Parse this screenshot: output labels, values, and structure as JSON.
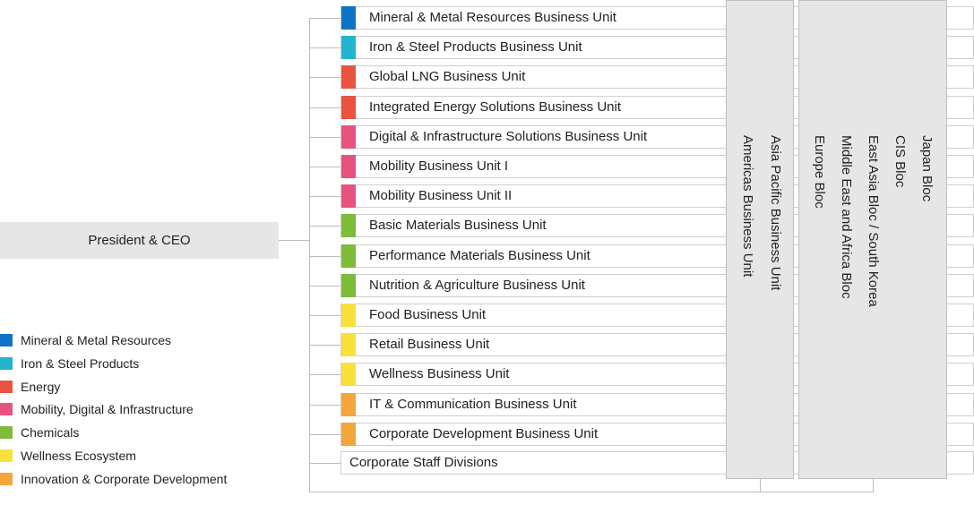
{
  "ceo": {
    "label": "President & CEO"
  },
  "units": [
    {
      "label": "Mineral & Metal Resources Business Unit",
      "color": "#0d74c8"
    },
    {
      "label": "Iron & Steel Products Business Unit",
      "color": "#22b5cd"
    },
    {
      "label": "Global LNG Business Unit",
      "color": "#e9533f"
    },
    {
      "label": "Integrated Energy Solutions Business Unit",
      "color": "#e9533f"
    },
    {
      "label": "Digital & Infrastructure Solutions Business Unit",
      "color": "#e8527f"
    },
    {
      "label": "Mobility Business Unit I",
      "color": "#e8527f"
    },
    {
      "label": "Mobility Business Unit II",
      "color": "#e8527f"
    },
    {
      "label": "Basic Materials Business Unit",
      "color": "#7ebc3a"
    },
    {
      "label": "Performance Materials Business Unit",
      "color": "#7ebc3a"
    },
    {
      "label": "Nutrition & Agriculture Business Unit",
      "color": "#7ebc3a"
    },
    {
      "label": "Food Business Unit",
      "color": "#fbe03a"
    },
    {
      "label": "Retail Business Unit",
      "color": "#fbe03a"
    },
    {
      "label": "Wellness Business Unit",
      "color": "#fbe03a"
    },
    {
      "label": "IT & Communication Business Unit",
      "color": "#f4a53b"
    },
    {
      "label": "Corporate Development Business Unit",
      "color": "#f4a53b"
    }
  ],
  "staff": {
    "label": "Corporate Staff Divisions"
  },
  "regional_units": {
    "asia_pacific": "Asia Pacific Business Unit",
    "americas": "Americas Business Unit"
  },
  "blocs": {
    "japan": "Japan Bloc",
    "cis": "CIS Bloc",
    "east_asia": "East Asia Bloc / South Korea",
    "middle_east": "Middle East and Africa Bloc",
    "europe": "Europe Bloc"
  },
  "legend": [
    {
      "label": "Mineral & Metal Resources",
      "color": "#0d74c8"
    },
    {
      "label": "Iron & Steel Products",
      "color": "#22b5cd"
    },
    {
      "label": "Energy",
      "color": "#e9533f"
    },
    {
      "label": "Mobility, Digital & Infrastructure",
      "color": "#e8527f"
    },
    {
      "label": "Chemicals",
      "color": "#7ebc3a"
    },
    {
      "label": "Wellness Ecosystem",
      "color": "#fbe03a"
    },
    {
      "label": "Innovation & Corporate Development",
      "color": "#f4a53b"
    }
  ]
}
